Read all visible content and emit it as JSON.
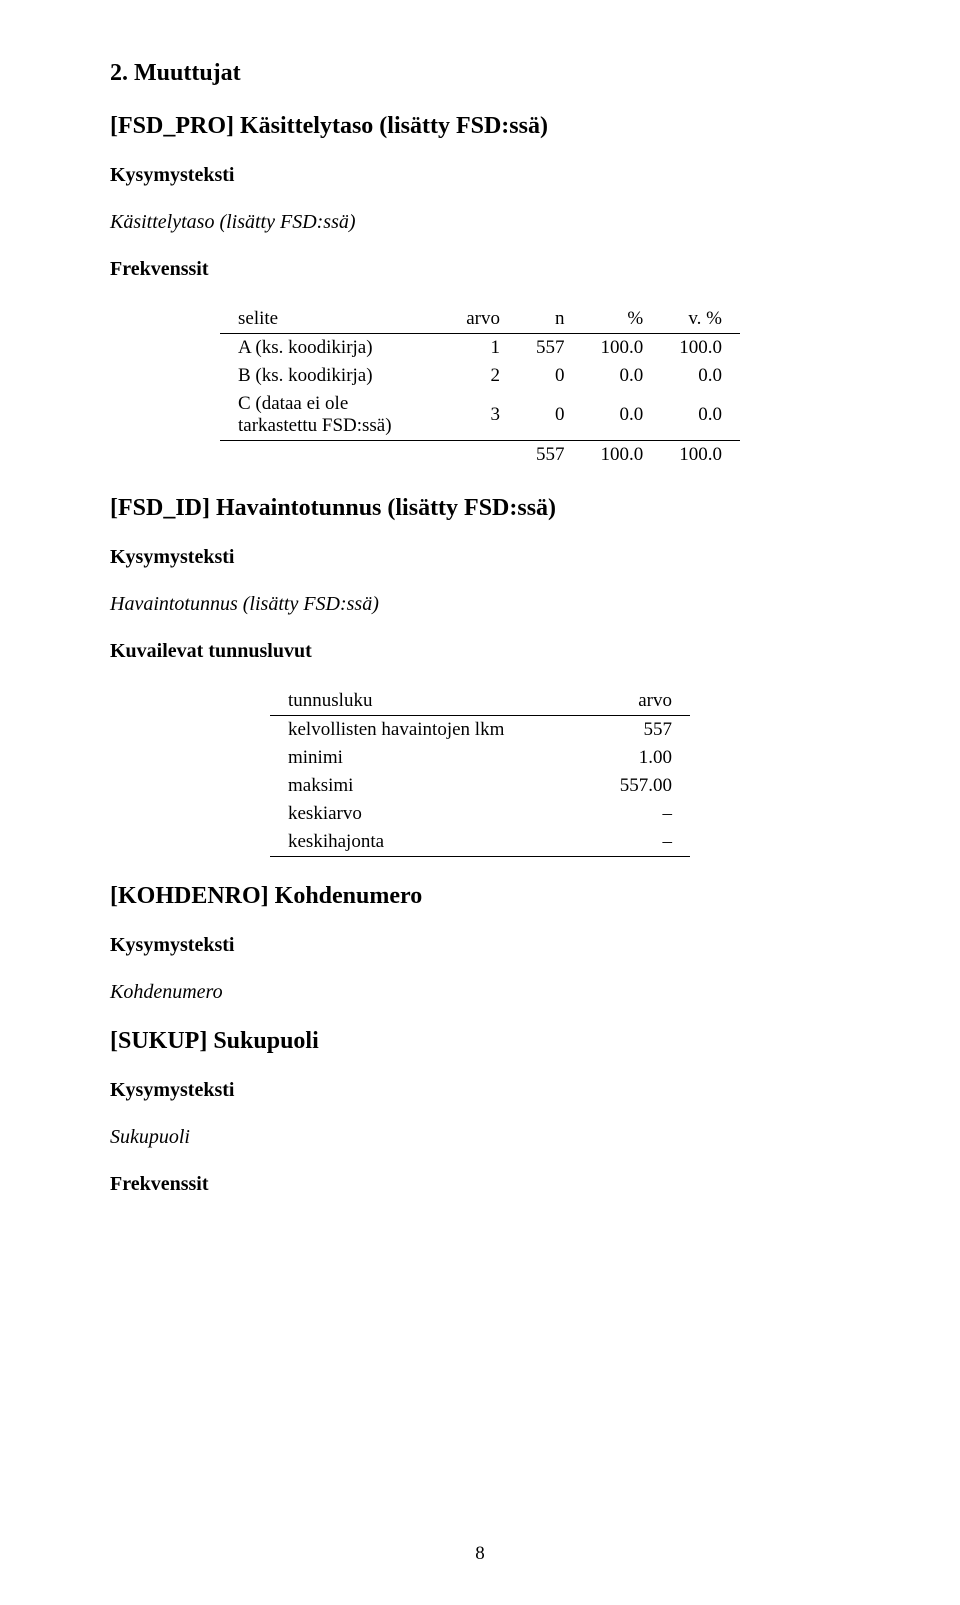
{
  "headings": {
    "section": "2. Muuttujat",
    "var1": "[FSD_PRO] Käsittelytaso (lisätty FSD:ssä)",
    "var2": "[FSD_ID] Havaintotunnus (lisätty FSD:ssä)",
    "var3": "[KOHDENRO] Kohdenumero",
    "var4": "[SUKUP] Sukupuoli",
    "kysymysteksti": "Kysymysteksti",
    "frekvenssit": "Frekvenssit",
    "kuvailevat": "Kuvailevat tunnusluvut"
  },
  "italics": {
    "var1": "Käsittelytaso (lisätty FSD:ssä)",
    "var2": "Havaintotunnus (lisätty FSD:ssä)",
    "var3": "Kohdenumero",
    "var4": "Sukupuoli"
  },
  "freq_table": {
    "headers": {
      "c0": "selite",
      "c1": "arvo",
      "c2": "n",
      "c3": "%",
      "c4": "v. %"
    },
    "rows": [
      {
        "c0": "A (ks. koodikirja)",
        "c1": "1",
        "c2": "557",
        "c3": "100.0",
        "c4": "100.0"
      },
      {
        "c0": "B (ks. koodikirja)",
        "c1": "2",
        "c2": "0",
        "c3": "0.0",
        "c4": "0.0"
      },
      {
        "c0": "C (dataa ei ole tarkastettu FSD:ssä)",
        "c1": "3",
        "c2": "0",
        "c3": "0.0",
        "c4": "0.0"
      }
    ],
    "total": {
      "c2": "557",
      "c3": "100.0",
      "c4": "100.0"
    }
  },
  "stats_table": {
    "headers": {
      "c0": "tunnusluku",
      "c1": "arvo"
    },
    "rows": [
      {
        "c0": "kelvollisten havaintojen lkm",
        "c1": "557"
      },
      {
        "c0": "minimi",
        "c1": "1.00"
      },
      {
        "c0": "maksimi",
        "c1": "557.00"
      },
      {
        "c0": "keskiarvo",
        "c1": "–"
      },
      {
        "c0": "keskihajonta",
        "c1": "–"
      }
    ]
  },
  "page_number": "8"
}
